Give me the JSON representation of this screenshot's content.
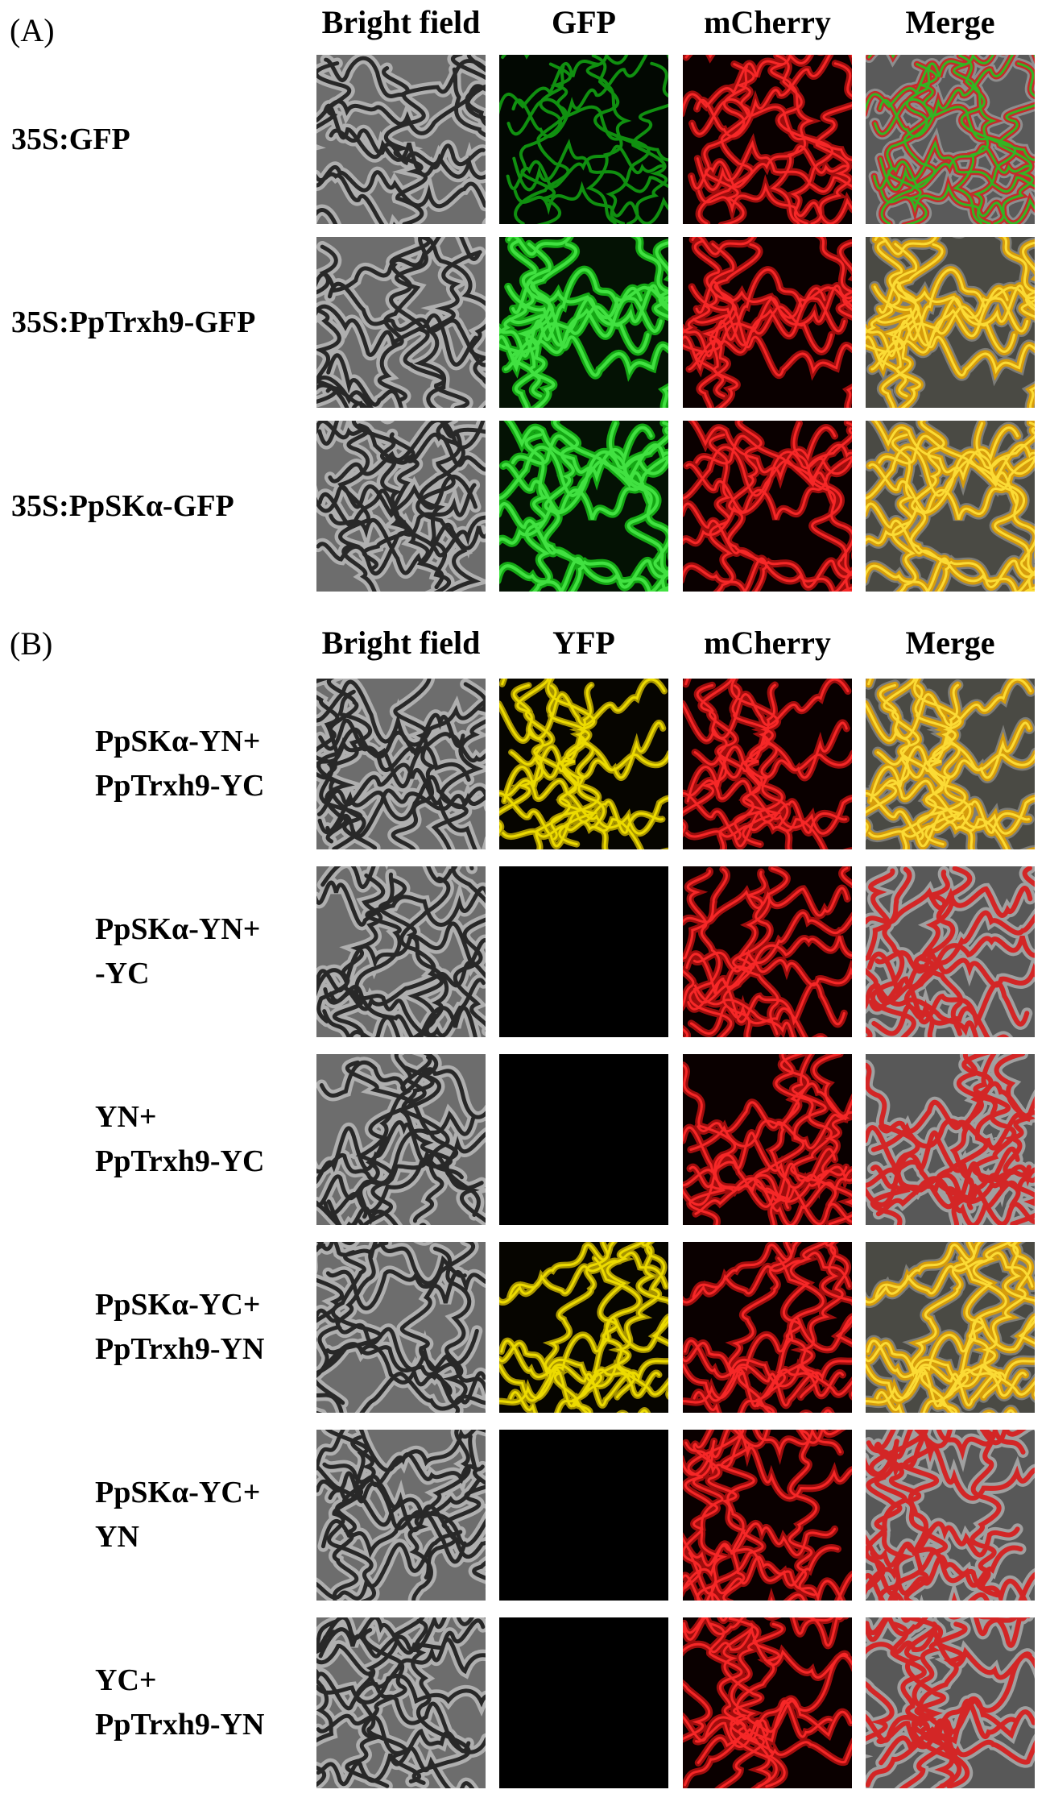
{
  "panels": [
    {
      "label": "(A)",
      "headers": [
        "Bright field",
        "GFP",
        "mCherry",
        "Merge"
      ],
      "rows": [
        {
          "label_lines": [
            "35S:GFP"
          ],
          "channels": [
            "bright",
            "green-thin",
            "red",
            "merge-green-red"
          ]
        },
        {
          "label_lines": [
            "35S:PpTrxh9-GFP"
          ],
          "channels": [
            "bright",
            "green-bold",
            "red",
            "merge-yellow"
          ]
        },
        {
          "label_lines": [
            "35S:PpSKα-GFP"
          ],
          "channels": [
            "bright",
            "green-bold",
            "red",
            "merge-yellow"
          ]
        }
      ]
    },
    {
      "label": "(B)",
      "headers": [
        "Bright field",
        "YFP",
        "mCherry",
        "Merge"
      ],
      "rows": [
        {
          "label_lines": [
            "PpSKα-YN+",
            "PpTrxh9-YC"
          ],
          "channels": [
            "bright",
            "yellow",
            "red",
            "merge-yellow"
          ]
        },
        {
          "label_lines": [
            "PpSKα-YN+",
            "-YC"
          ],
          "channels": [
            "bright",
            "black",
            "red",
            "merge-red"
          ]
        },
        {
          "label_lines": [
            "YN+",
            "PpTrxh9-YC"
          ],
          "channels": [
            "bright",
            "black",
            "red",
            "merge-red"
          ]
        },
        {
          "label_lines": [
            "PpSKα-YC+",
            "PpTrxh9-YN"
          ],
          "channels": [
            "bright",
            "yellow",
            "red",
            "merge-yellow"
          ]
        },
        {
          "label_lines": [
            "PpSKα-YC+",
            "YN"
          ],
          "channels": [
            "bright",
            "black",
            "red",
            "merge-red"
          ]
        },
        {
          "label_lines": [
            "YC+",
            "PpTrxh9-YN"
          ],
          "channels": [
            "bright",
            "black",
            "red",
            "merge-red"
          ]
        }
      ]
    }
  ]
}
